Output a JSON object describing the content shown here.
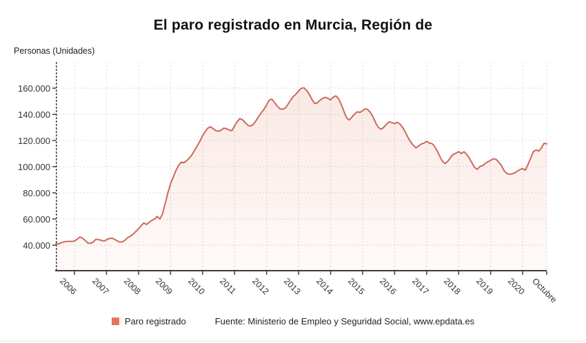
{
  "title": "El paro registrado en Murcia, Región de",
  "y_axis_title": "Personas (Unidades)",
  "legend": {
    "label": "Paro registrado",
    "color": "#e8735a"
  },
  "source": "Fuente: Ministerio de Empleo y Seguridad Social, www.epdata.es",
  "colors": {
    "line": "#ca6a58",
    "area_top": "rgba(224,116,90,0.16)",
    "area_bottom": "rgba(224,116,90,0.04)",
    "grid": "#d8d8d8",
    "axis": "#3b3b3b",
    "text": "#333333"
  },
  "chart_data": {
    "type": "area",
    "title": "El paro registrado en Murcia, Región de",
    "xlabel": "",
    "ylabel": "Personas (Unidades)",
    "frequency": "monthly",
    "x_start": "2005-06",
    "x_end": "2020-10",
    "ylim": [
      20000,
      180000
    ],
    "grid": true,
    "legend_position": "bottom",
    "y_ticks": [
      {
        "value": 40000,
        "label": "40.000"
      },
      {
        "value": 60000,
        "label": "60.000"
      },
      {
        "value": 80000,
        "label": "80.000"
      },
      {
        "value": 100000,
        "label": "100.000"
      },
      {
        "value": 120000,
        "label": "120.000"
      },
      {
        "value": 140000,
        "label": "140.000"
      },
      {
        "value": 160000,
        "label": "160.000"
      }
    ],
    "x_ticks": [
      {
        "label": "2006",
        "month_index": 7
      },
      {
        "label": "2007",
        "month_index": 19
      },
      {
        "label": "2008",
        "month_index": 31
      },
      {
        "label": "2009",
        "month_index": 43
      },
      {
        "label": "2010",
        "month_index": 55
      },
      {
        "label": "2011",
        "month_index": 67
      },
      {
        "label": "2012",
        "month_index": 79
      },
      {
        "label": "2013",
        "month_index": 91
      },
      {
        "label": "2014",
        "month_index": 103
      },
      {
        "label": "2015",
        "month_index": 115
      },
      {
        "label": "2016",
        "month_index": 127
      },
      {
        "label": "2017",
        "month_index": 139
      },
      {
        "label": "2018",
        "month_index": 151
      },
      {
        "label": "2019",
        "month_index": 163
      },
      {
        "label": "2020",
        "month_index": 175
      },
      {
        "label": "Octubre",
        "month_index": 184
      }
    ],
    "series": [
      {
        "name": "Paro registrado",
        "values": [
          41300,
          41000,
          41800,
          42600,
          42800,
          42900,
          42900,
          43100,
          44600,
          46200,
          45400,
          43600,
          41700,
          41400,
          42400,
          44500,
          44300,
          43700,
          43200,
          44100,
          45100,
          45400,
          44500,
          43300,
          42400,
          42700,
          43900,
          45900,
          47000,
          48500,
          50500,
          52500,
          55000,
          57000,
          55800,
          57500,
          59000,
          60000,
          62000,
          60000,
          64000,
          72000,
          80000,
          87000,
          92000,
          97000,
          101000,
          103500,
          103000,
          104500,
          106500,
          109000,
          112500,
          116000,
          119500,
          123500,
          127000,
          129500,
          130500,
          129000,
          127500,
          127000,
          128000,
          129500,
          129000,
          128000,
          127500,
          131200,
          134500,
          136800,
          135800,
          133600,
          131600,
          131000,
          132300,
          135000,
          138300,
          141200,
          143800,
          147200,
          150900,
          151600,
          149000,
          146200,
          144200,
          143900,
          144800,
          147600,
          150800,
          153600,
          155500,
          157900,
          159900,
          160300,
          158300,
          155300,
          151400,
          148300,
          148800,
          150700,
          152200,
          153000,
          152300,
          151000,
          153200,
          154100,
          151900,
          147500,
          142200,
          137300,
          135700,
          137900,
          140300,
          141900,
          141500,
          142800,
          144300,
          143500,
          141200,
          137600,
          133000,
          129800,
          128600,
          130300,
          132600,
          134300,
          133600,
          133000,
          133900,
          132600,
          130000,
          126400,
          122300,
          118900,
          116300,
          114400,
          115800,
          117400,
          118000,
          119400,
          118000,
          117700,
          115500,
          111800,
          107600,
          103900,
          102400,
          104300,
          107200,
          109500,
          110300,
          111500,
          110000,
          111400,
          109400,
          106500,
          102800,
          99300,
          98000,
          100200,
          100800,
          102500,
          103800,
          104800,
          106100,
          105600,
          103500,
          101000,
          97000,
          94800,
          94200,
          94500,
          95300,
          96600,
          97800,
          98600,
          97300,
          101800,
          106500,
          111500,
          112800,
          111900,
          114200,
          117900,
          117500
        ]
      }
    ]
  }
}
